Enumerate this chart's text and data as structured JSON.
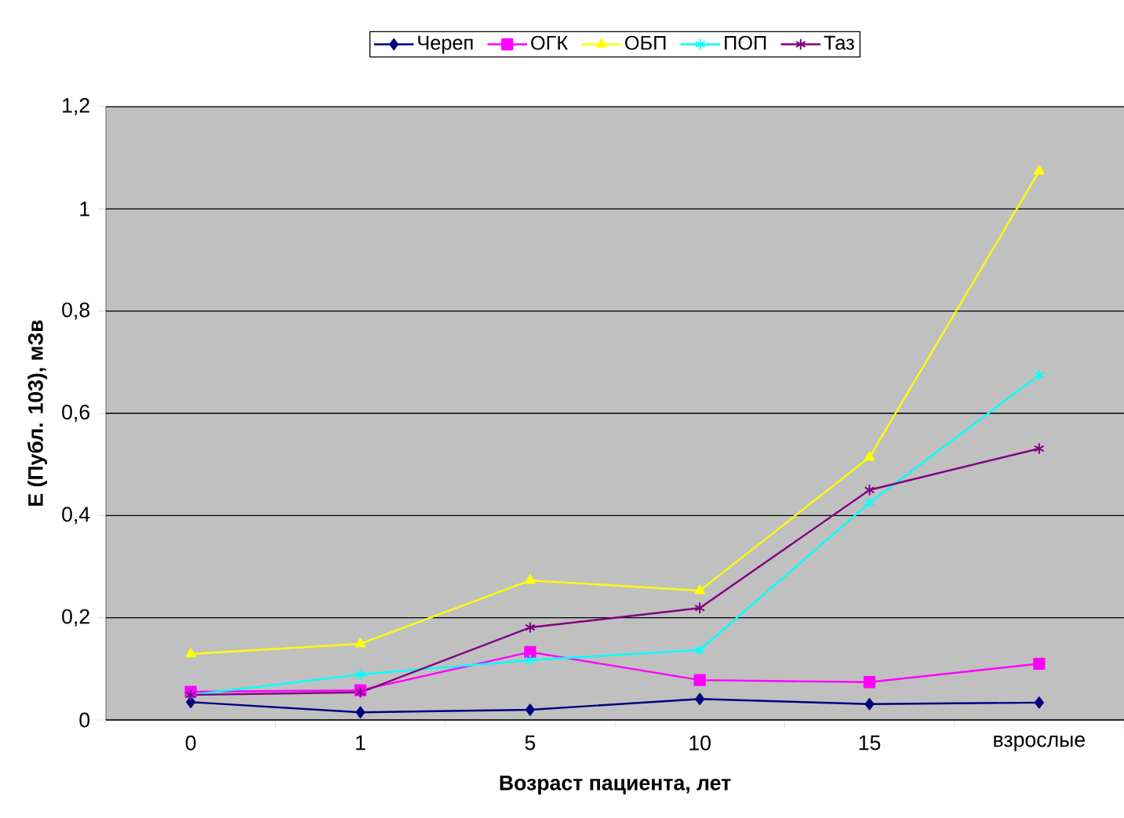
{
  "chart_data": {
    "type": "line",
    "xlabel": "Возраст пациента, лет",
    "ylabel": "E (Публ. 103), мЗв",
    "categories": [
      "0",
      "1",
      "5",
      "10",
      "15",
      "взрослые"
    ],
    "series": [
      {
        "name": "Череп",
        "color": "#000080",
        "marker": "diamond",
        "values": [
          0.035,
          0.015,
          0.02,
          0.041,
          0.031,
          0.034
        ]
      },
      {
        "name": "ОГК",
        "color": "#ff00ff",
        "marker": "square",
        "values": [
          0.055,
          0.058,
          0.133,
          0.078,
          0.074,
          0.11
        ]
      },
      {
        "name": "ОБП",
        "color": "#ffff00",
        "marker": "triangle",
        "values": [
          0.129,
          0.149,
          0.273,
          0.253,
          0.514,
          1.074
        ]
      },
      {
        "name": "ПОП",
        "color": "#00ffff",
        "marker": "cross",
        "values": [
          0.049,
          0.089,
          0.117,
          0.137,
          0.425,
          0.675
        ]
      },
      {
        "name": "Таз",
        "color": "#800080",
        "marker": "cross",
        "values": [
          0.049,
          0.054,
          0.181,
          0.219,
          0.45,
          0.531
        ]
      }
    ],
    "ylim": [
      0,
      1.2
    ],
    "yticks": [
      0,
      {
        "value": 0.2,
        "label": "0,2"
      },
      {
        "value": 0.4,
        "label": "0,4"
      },
      {
        "value": 0.6,
        "label": "0,6"
      },
      {
        "value": 0.8,
        "label": "0,8"
      },
      1,
      {
        "value": 1.2,
        "label": "1,2"
      }
    ],
    "grid": "y",
    "legend": "top",
    "line_style": "solid"
  }
}
